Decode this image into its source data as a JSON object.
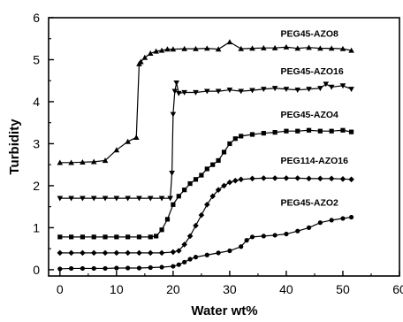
{
  "chart_data": {
    "type": "line",
    "title": "",
    "xlabel": "Water wt%",
    "ylabel": "Turbidity",
    "xlim": [
      -2,
      60
    ],
    "ylim": [
      -0.15,
      6
    ],
    "xticks": [
      "0",
      "10",
      "20",
      "30",
      "40",
      "50",
      "60"
    ],
    "yticks": [
      "0",
      "1",
      "2",
      "3",
      "4",
      "5",
      "6"
    ],
    "grid": false,
    "legend": "inline labels near series ends",
    "series": [
      {
        "name": "PEG45-AZO8",
        "marker": "triangle-up",
        "x": [
          0,
          2,
          4,
          6,
          8,
          10,
          12,
          13.5,
          14,
          14.3,
          15,
          16,
          17,
          18,
          19,
          20,
          22,
          24,
          26,
          28,
          30,
          32,
          34,
          36,
          38,
          40,
          42,
          44,
          46,
          48,
          50,
          51.5
        ],
        "y": [
          2.55,
          2.55,
          2.56,
          2.57,
          2.6,
          2.85,
          3.05,
          3.15,
          4.9,
          4.95,
          5.05,
          5.15,
          5.2,
          5.22,
          5.25,
          5.25,
          5.26,
          5.26,
          5.27,
          5.25,
          5.42,
          5.26,
          5.27,
          5.28,
          5.28,
          5.3,
          5.27,
          5.29,
          5.27,
          5.27,
          5.26,
          5.22
        ]
      },
      {
        "name": "PEG45-AZO16",
        "marker": "triangle-down",
        "x": [
          0,
          2,
          4,
          6,
          8,
          10,
          12,
          14,
          16,
          18,
          19.5,
          19.8,
          20,
          20.3,
          20.6,
          21,
          22,
          24,
          26,
          28,
          30,
          32,
          34,
          36,
          38,
          40,
          42,
          44,
          46,
          47,
          48,
          50,
          51.5
        ],
        "y": [
          1.7,
          1.7,
          1.7,
          1.7,
          1.7,
          1.7,
          1.7,
          1.7,
          1.7,
          1.7,
          1.7,
          2.3,
          3.7,
          4.25,
          4.45,
          4.2,
          4.22,
          4.22,
          4.25,
          4.25,
          4.28,
          4.25,
          4.27,
          4.3,
          4.32,
          4.3,
          4.28,
          4.3,
          4.32,
          4.42,
          4.35,
          4.38,
          4.3
        ]
      },
      {
        "name": "PEG45-AZO4",
        "marker": "square",
        "x": [
          0,
          2,
          4,
          6,
          8,
          10,
          12,
          14,
          16,
          17,
          18,
          19,
          20,
          21,
          22,
          23,
          24,
          25,
          26,
          27,
          28,
          29,
          30,
          31,
          32,
          34,
          36,
          38,
          40,
          42,
          44,
          46,
          48,
          50,
          51.5
        ],
        "y": [
          0.78,
          0.78,
          0.78,
          0.78,
          0.78,
          0.78,
          0.78,
          0.78,
          0.78,
          0.8,
          0.95,
          1.2,
          1.55,
          1.75,
          1.9,
          2.05,
          2.15,
          2.25,
          2.4,
          2.5,
          2.6,
          2.8,
          3.0,
          3.12,
          3.18,
          3.22,
          3.25,
          3.27,
          3.3,
          3.3,
          3.32,
          3.3,
          3.3,
          3.32,
          3.28
        ]
      },
      {
        "name": "PEG114-AZO16",
        "marker": "diamond",
        "x": [
          0,
          2,
          4,
          6,
          8,
          10,
          12,
          14,
          16,
          18,
          20,
          21,
          22,
          23,
          24,
          25,
          26,
          27,
          28,
          29,
          30,
          31,
          32,
          34,
          36,
          38,
          40,
          42,
          44,
          46,
          48,
          50,
          51.5
        ],
        "y": [
          0.4,
          0.4,
          0.4,
          0.4,
          0.4,
          0.4,
          0.4,
          0.4,
          0.4,
          0.4,
          0.42,
          0.45,
          0.6,
          0.8,
          1.05,
          1.3,
          1.55,
          1.75,
          1.9,
          2.0,
          2.08,
          2.12,
          2.15,
          2.17,
          2.18,
          2.18,
          2.18,
          2.18,
          2.17,
          2.17,
          2.17,
          2.16,
          2.15
        ]
      },
      {
        "name": "PEG45-AZO2",
        "marker": "circle",
        "x": [
          0,
          2,
          4,
          6,
          8,
          10,
          12,
          14,
          16,
          18,
          20,
          21,
          22,
          23,
          24,
          26,
          28,
          30,
          32,
          33,
          34,
          36,
          38,
          40,
          42,
          44,
          46,
          48,
          50,
          51.5
        ],
        "y": [
          0.02,
          0.03,
          0.03,
          0.03,
          0.03,
          0.04,
          0.04,
          0.04,
          0.05,
          0.06,
          0.08,
          0.12,
          0.18,
          0.25,
          0.3,
          0.35,
          0.4,
          0.45,
          0.55,
          0.7,
          0.78,
          0.8,
          0.82,
          0.85,
          0.92,
          1.0,
          1.12,
          1.18,
          1.22,
          1.25
        ]
      }
    ],
    "annotations": [
      {
        "text": "PEG45-AZO8",
        "x": 39,
        "y": 5.55
      },
      {
        "text": "PEG45-AZO16",
        "x": 39,
        "y": 4.65
      },
      {
        "text": "PEG45-AZO4",
        "x": 39,
        "y": 3.62
      },
      {
        "text": "PEG114-AZO16",
        "x": 39,
        "y": 2.53
      },
      {
        "text": "PEG45-AZO2",
        "x": 39,
        "y": 1.52
      }
    ]
  }
}
